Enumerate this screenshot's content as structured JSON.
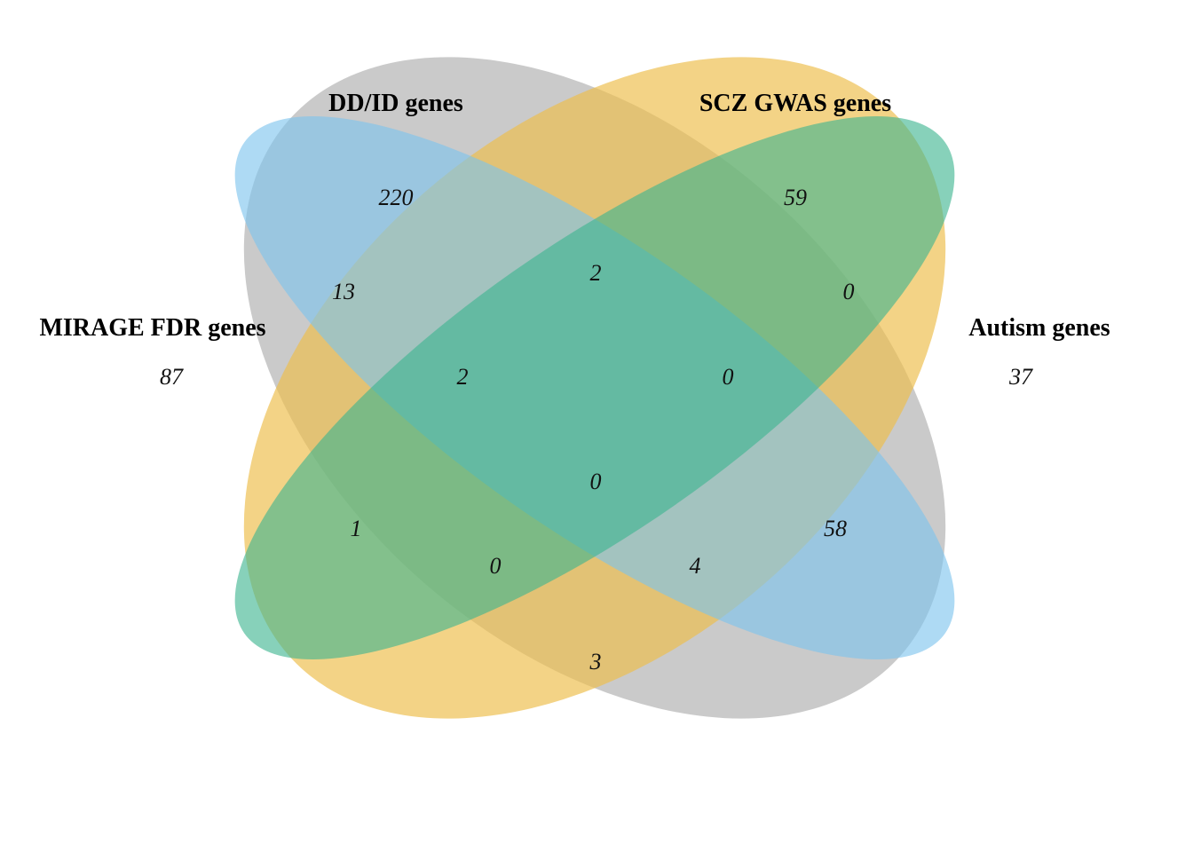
{
  "sets": [
    {
      "id": "mirage",
      "label": "MIRAGE FDR genes",
      "color": "#b3b3b3",
      "opacity": 0.7
    },
    {
      "id": "ddid",
      "label": "DD/ID genes",
      "color": "#7cc4ee",
      "opacity": 0.62
    },
    {
      "id": "scz",
      "label": "SCZ GWAS genes",
      "color": "#3db48f",
      "opacity": 0.62
    },
    {
      "id": "autism",
      "label": "Autism genes",
      "color": "#edbe4d",
      "opacity": 0.68
    }
  ],
  "regions": {
    "mirage_only": "87",
    "ddid_only": "220",
    "scz_only": "59",
    "autism_only": "37",
    "mirage_ddid": "13",
    "ddid_scz": "2",
    "scz_autism": "0",
    "mirage_ddid_scz": "2",
    "ddid_scz_autism": "0",
    "all_four": "0",
    "mirage_scz": "1",
    "ddid_autism": "58",
    "mirage_scz_autism": "0",
    "mirage_ddid_autism": "4",
    "mirage_autism": "3"
  }
}
